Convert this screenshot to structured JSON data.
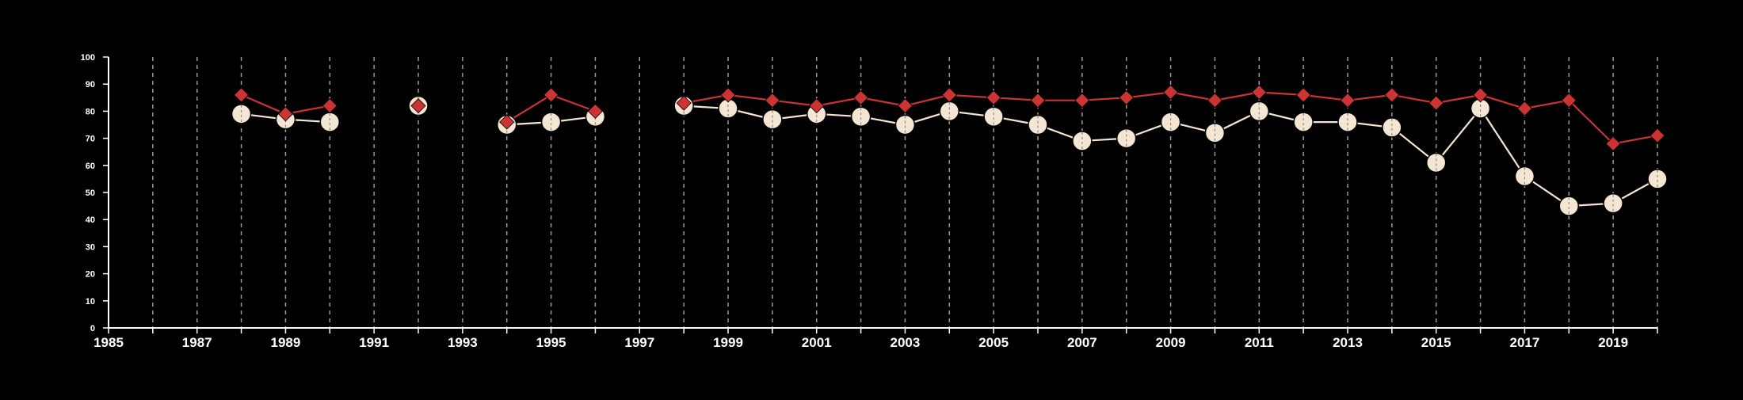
{
  "chart_data": {
    "type": "line",
    "title": "",
    "xlabel": "",
    "ylabel": "",
    "xlim": [
      1985,
      2020
    ],
    "ylim": [
      0,
      100
    ],
    "y_ticks": [
      0,
      10,
      20,
      30,
      40,
      50,
      60,
      70,
      80,
      90,
      100
    ],
    "x_tick_labels": [
      "1985",
      "1987",
      "1989",
      "1991",
      "1993",
      "1995",
      "1997",
      "1999",
      "2001",
      "2003",
      "2005",
      "2007",
      "2009",
      "2011",
      "2013",
      "2015",
      "2017",
      "2019"
    ],
    "grid": "vertical dashed lines at each year",
    "legend": "none",
    "colors": {
      "background": "#000000",
      "axis": "#ffffff",
      "grid": "#9a9a9a",
      "series_red": "#cc3333",
      "series_cream": "#f5e6d3"
    },
    "series": [
      {
        "marker": "diamond",
        "color": "#cc3333",
        "points": [
          [
            1988,
            86
          ],
          [
            1989,
            79
          ],
          [
            1990,
            82
          ],
          [
            1992,
            82
          ],
          [
            1994,
            76
          ],
          [
            1995,
            86
          ],
          [
            1996,
            80
          ],
          [
            1998,
            83
          ],
          [
            1999,
            86
          ],
          [
            2000,
            84
          ],
          [
            2001,
            82
          ],
          [
            2002,
            85
          ],
          [
            2003,
            82
          ],
          [
            2004,
            86
          ],
          [
            2005,
            85
          ],
          [
            2006,
            84
          ],
          [
            2007,
            84
          ],
          [
            2008,
            85
          ],
          [
            2009,
            87
          ],
          [
            2010,
            84
          ],
          [
            2011,
            87
          ],
          [
            2012,
            86
          ],
          [
            2013,
            84
          ],
          [
            2014,
            86
          ],
          [
            2015,
            83
          ],
          [
            2016,
            86
          ],
          [
            2017,
            81
          ],
          [
            2018,
            84
          ],
          [
            2019,
            68
          ],
          [
            2020,
            71
          ]
        ]
      },
      {
        "marker": "circle",
        "color": "#f5e6d3",
        "points": [
          [
            1988,
            79
          ],
          [
            1989,
            77
          ],
          [
            1990,
            76
          ],
          [
            1992,
            82
          ],
          [
            1994,
            75
          ],
          [
            1995,
            76
          ],
          [
            1996,
            78
          ],
          [
            1998,
            82
          ],
          [
            1999,
            81
          ],
          [
            2000,
            77
          ],
          [
            2001,
            79
          ],
          [
            2002,
            78
          ],
          [
            2003,
            75
          ],
          [
            2004,
            80
          ],
          [
            2005,
            78
          ],
          [
            2006,
            75
          ],
          [
            2007,
            69
          ],
          [
            2008,
            70
          ],
          [
            2009,
            76
          ],
          [
            2010,
            72
          ],
          [
            2011,
            80
          ],
          [
            2012,
            76
          ],
          [
            2013,
            76
          ],
          [
            2014,
            74
          ],
          [
            2015,
            61
          ],
          [
            2016,
            81
          ],
          [
            2017,
            56
          ],
          [
            2018,
            45
          ],
          [
            2019,
            46
          ],
          [
            2020,
            55
          ]
        ]
      }
    ]
  }
}
